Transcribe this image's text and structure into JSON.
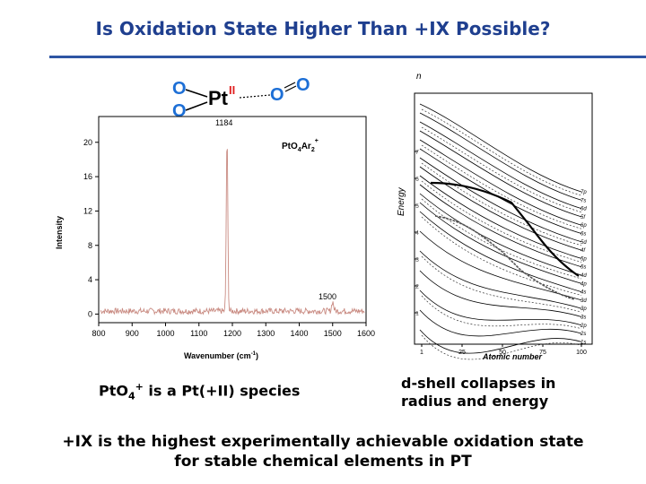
{
  "title": "Is Oxidation State Higher Than +IX Possible?",
  "left_figure": {
    "molecule": {
      "o_left_top": "O",
      "o_left_bottom": "O",
      "metal": "Pt",
      "ox_state": "II",
      "o_right_1": "O",
      "o_right_2": "O"
    },
    "species_main": "PtO",
    "species_sub1": "4",
    "species_ar": "Ar",
    "species_sub2": "2",
    "species_sup": "+",
    "peak_1184_label": "1184",
    "peak_1500_label": "1500",
    "xlabel_main": "Wavenumber (cm",
    "xlabel_sup": "-1",
    "xlabel_end": ")",
    "ylabel": "Intensity",
    "x_ticks": [
      "800",
      "900",
      "1000",
      "1100",
      "1200",
      "1300",
      "1400",
      "1500",
      "1600"
    ],
    "y_ticks": [
      "0",
      "4",
      "8",
      "12",
      "16",
      "20"
    ]
  },
  "right_figure": {
    "ylabel": "Energy",
    "n_label": "n",
    "xlabel": "Atomic number",
    "y_ticks": [
      "1",
      "2",
      "3",
      "4",
      "5",
      "6",
      "7"
    ],
    "x_ticks": [
      "1",
      "25",
      "50",
      "75",
      "100"
    ],
    "orbital_labels": [
      "7p",
      "7s",
      "6d",
      "5f",
      "6p",
      "6s",
      "5d",
      "4f",
      "5p",
      "5s",
      "4d",
      "4p",
      "4s",
      "3d",
      "3p",
      "3s",
      "2p",
      "2s",
      "1s"
    ]
  },
  "caption_left": {
    "main": "PtO",
    "sub": "4",
    "sup": "+",
    "rest": " is a Pt(+II) species"
  },
  "caption_right": "d-shell collapses in radius and energy",
  "bottom_line1": "+IX is the highest experimentally achievable oxidation state",
  "bottom_line2": "for stable chemical elements in PT"
}
